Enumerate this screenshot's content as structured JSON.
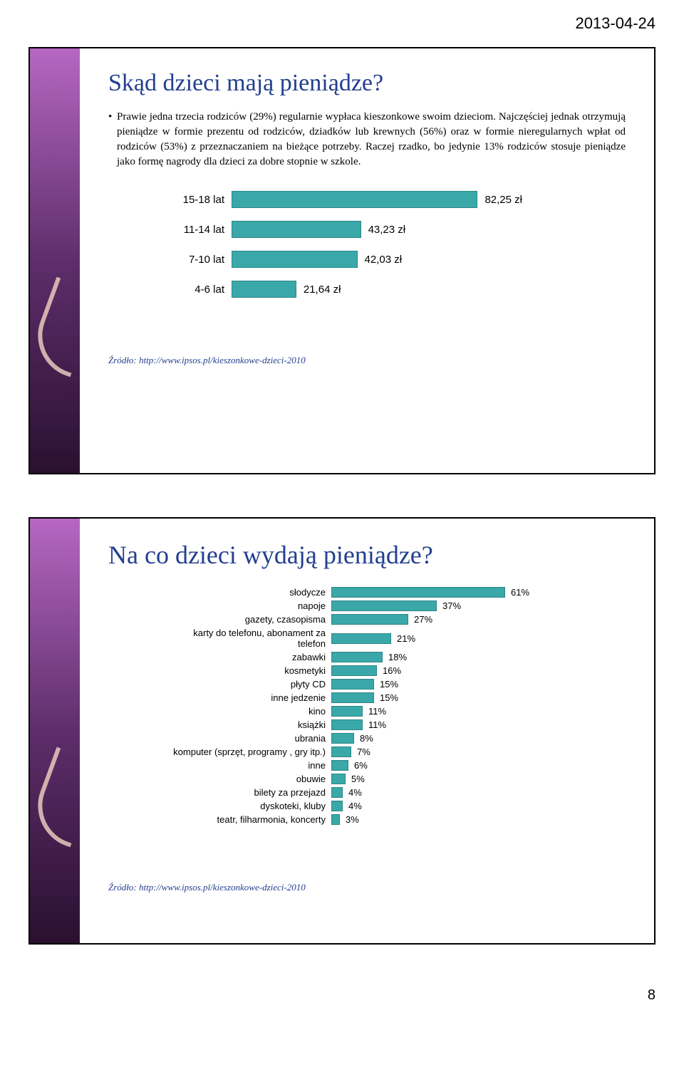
{
  "page": {
    "date": "2013-04-24",
    "pagenum": "8"
  },
  "slide1": {
    "title": "Skąd dzieci mają pieniądze?",
    "paragraph": "Prawie jedna trzecia rodziców (29%) regularnie wypłaca kieszonkowe swoim dzieciom. Najczęściej jednak otrzymują pieniądze w formie prezentu od rodziców, dziadków lub krewnych (56%) oraz w formie nieregularnych wpłat od rodziców (53%) z przeznaczaniem na bieżące potrzeby. Raczej rzadko, bo jedynie 13% rodziców stosuje pieniądze jako formę nagrody dla dzieci za dobre stopnie w szkole.",
    "chart": {
      "type": "bar",
      "bar_color": "#3aa8a8",
      "bar_border": "#2e8686",
      "text_color": "#000000",
      "max_value": 100,
      "rows": [
        {
          "label": "15-18 lat",
          "value_label": "82,25 zł",
          "value": 82.25
        },
        {
          "label": "11-14 lat",
          "value_label": "43,23 zł",
          "value": 43.23
        },
        {
          "label": "7-10 lat",
          "value_label": "42,03 zł",
          "value": 42.03
        },
        {
          "label": "4-6 lat",
          "value_label": "21,64 zł",
          "value": 21.64
        }
      ]
    },
    "source": "Źródło: http://www.ipsos.pl/kieszonkowe-dzieci-2010"
  },
  "slide2": {
    "title": "Na co dzieci wydają pieniądze?",
    "chart": {
      "type": "bar",
      "bar_color": "#3aa8a8",
      "bar_border": "#2e8686",
      "text_color": "#000000",
      "max_value": 70,
      "rows": [
        {
          "label": "słodycze",
          "value_label": "61%",
          "value": 61
        },
        {
          "label": "napoje",
          "value_label": "37%",
          "value": 37
        },
        {
          "label": "gazety, czasopisma",
          "value_label": "27%",
          "value": 27
        },
        {
          "label": "karty do telefonu, abonament za telefon",
          "value_label": "21%",
          "value": 21
        },
        {
          "label": "zabawki",
          "value_label": "18%",
          "value": 18
        },
        {
          "label": "kosmetyki",
          "value_label": "16%",
          "value": 16
        },
        {
          "label": "płyty CD",
          "value_label": "15%",
          "value": 15
        },
        {
          "label": "inne jedzenie",
          "value_label": "15%",
          "value": 15
        },
        {
          "label": "kino",
          "value_label": "11%",
          "value": 11
        },
        {
          "label": "książki",
          "value_label": "11%",
          "value": 11
        },
        {
          "label": "ubrania",
          "value_label": "8%",
          "value": 8
        },
        {
          "label": "komputer (sprzęt, programy , gry itp.)",
          "value_label": "7%",
          "value": 7
        },
        {
          "label": "inne",
          "value_label": "6%",
          "value": 6
        },
        {
          "label": "obuwie",
          "value_label": "5%",
          "value": 5
        },
        {
          "label": "bilety za przejazd",
          "value_label": "4%",
          "value": 4
        },
        {
          "label": "dyskoteki, kluby",
          "value_label": "4%",
          "value": 4
        },
        {
          "label": "teatr, filharmonia, koncerty",
          "value_label": "3%",
          "value": 3
        }
      ]
    },
    "source": "Źródło: http://www.ipsos.pl/kieszonkowe-dzieci-2010"
  }
}
